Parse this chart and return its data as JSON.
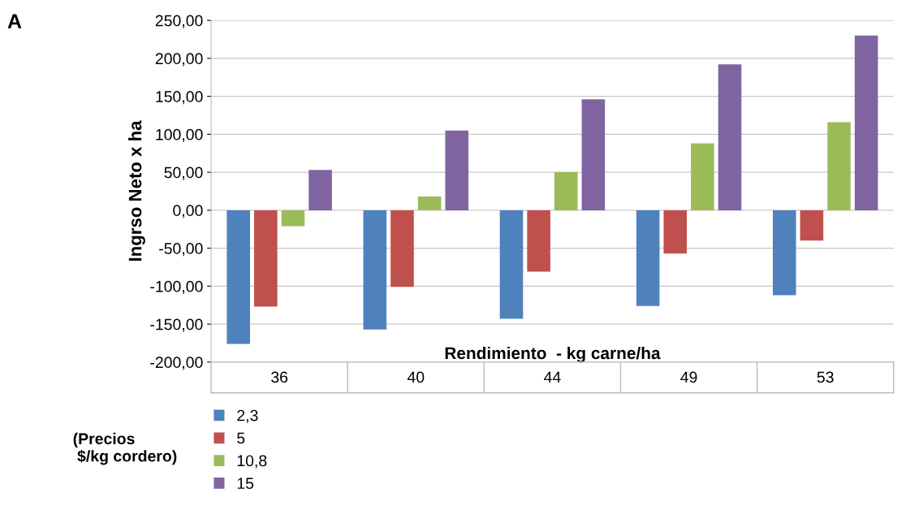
{
  "chart_data": {
    "type": "bar",
    "xlabel": "Rendimiento  - kg carne/ha",
    "ylabel": "Ingrso Neto x ha",
    "legend_title": "(Precios\n $/kg cordero)",
    "categories": [
      "36",
      "40",
      "44",
      "49",
      "53"
    ],
    "series": [
      {
        "name": "2,3",
        "color": "#4f81bd",
        "values": [
          -176,
          -157,
          -143,
          -126,
          -112
        ]
      },
      {
        "name": "5",
        "color": "#c0504d",
        "values": [
          -127,
          -101,
          -81,
          -57,
          -40
        ]
      },
      {
        "name": "10,8",
        "color": "#9bbb59",
        "values": [
          -21,
          18,
          50,
          88,
          116
        ]
      },
      {
        "name": "15",
        "color": "#8064a2",
        "values": [
          53,
          105,
          146,
          192,
          230
        ]
      }
    ],
    "ylim": [
      -200,
      250
    ],
    "yticks": [
      {
        "value": -200,
        "label": "-200,00"
      },
      {
        "value": -150,
        "label": "-150,00"
      },
      {
        "value": -100,
        "label": "-100,00"
      },
      {
        "value": -50,
        "label": "-50,00"
      },
      {
        "value": 0,
        "label": "0,00"
      },
      {
        "value": 50,
        "label": "50,00"
      },
      {
        "value": 100,
        "label": "100,00"
      },
      {
        "value": 150,
        "label": "150,00"
      },
      {
        "value": 200,
        "label": "200,00"
      },
      {
        "value": 250,
        "label": "250,00"
      }
    ],
    "grid": "y",
    "legend": "bottom left",
    "annotations": [
      "A"
    ]
  }
}
